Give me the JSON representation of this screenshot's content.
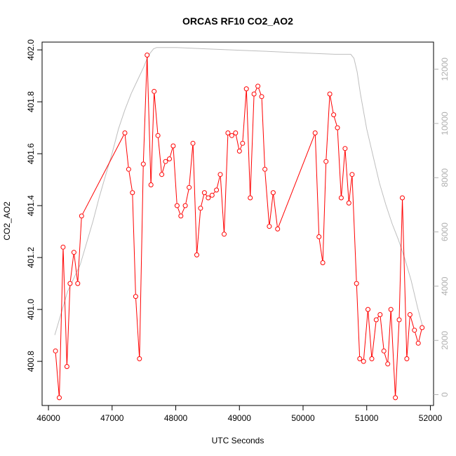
{
  "chart_data": {
    "type": "line",
    "title": "ORCAS RF10 CO2_AO2",
    "xlabel": "UTC Seconds",
    "ylabel": "CO2_AO2",
    "xlim": [
      45900,
      52050
    ],
    "ylim": [
      400.63,
      402.03
    ],
    "x_ticks": [
      46000,
      47000,
      48000,
      49000,
      50000,
      51000,
      52000
    ],
    "y_ticks": [
      400.8,
      401.0,
      401.2,
      401.4,
      401.6,
      401.8,
      402.0
    ],
    "y2lim": [
      -400,
      13000
    ],
    "y2_ticks": [
      0,
      2000,
      4000,
      6000,
      8000,
      10000,
      12000
    ],
    "grid": false,
    "colors": {
      "co2": "#ff0000",
      "altitude": "#bebebe",
      "right_axis": "#b0b0b0"
    },
    "series": [
      {
        "axis": "left",
        "style": "line+points",
        "x": [
          46110,
          46170,
          46230,
          46290,
          46340,
          46400,
          46460,
          46520,
          47200,
          47260,
          47320,
          47370,
          47430,
          47490,
          47550,
          47610,
          47660,
          47720,
          47780,
          47840,
          47900,
          47960,
          48020,
          48080,
          48150,
          48210,
          48270,
          48330,
          48390,
          48450,
          48510,
          48570,
          48640,
          48700,
          48760,
          48820,
          48880,
          48940,
          49000,
          49050,
          49110,
          49170,
          49230,
          49290,
          49350,
          49400,
          49470,
          49530,
          49600,
          50190,
          50250,
          50310,
          50360,
          50420,
          50480,
          50540,
          50600,
          50660,
          50720,
          50770,
          50840,
          50890,
          50950,
          51020,
          51080,
          51150,
          51210,
          51270,
          51330,
          51380,
          51450,
          51510,
          51560,
          51630,
          51680,
          51750,
          51810,
          51870
        ],
        "y": [
          400.84,
          400.66,
          401.24,
          400.78,
          401.1,
          401.22,
          401.1,
          401.36,
          401.68,
          401.54,
          401.45,
          401.05,
          400.81,
          401.56,
          401.98,
          401.48,
          401.84,
          401.67,
          401.52,
          401.57,
          401.58,
          401.63,
          401.4,
          401.36,
          401.4,
          401.47,
          401.64,
          401.21,
          401.39,
          401.45,
          401.43,
          401.44,
          401.46,
          401.52,
          401.29,
          401.68,
          401.67,
          401.68,
          401.61,
          401.64,
          401.85,
          401.43,
          401.83,
          401.86,
          401.82,
          401.54,
          401.32,
          401.45,
          401.31,
          401.68,
          401.28,
          401.18,
          401.57,
          401.83,
          401.75,
          401.7,
          401.43,
          401.62,
          401.41,
          401.52,
          401.1,
          400.81,
          400.8,
          401.0,
          400.81,
          400.96,
          400.98,
          400.84,
          400.79,
          401.0,
          400.66,
          400.96,
          401.43,
          400.81,
          400.98,
          400.92,
          400.87,
          400.93
        ]
      },
      {
        "axis": "right",
        "style": "line",
        "x": [
          46100,
          46200,
          46300,
          46400,
          46500,
          46600,
          46700,
          46800,
          46900,
          47000,
          47100,
          47200,
          47300,
          47400,
          47500,
          47550,
          47600,
          47650,
          47700,
          48000,
          48500,
          49000,
          49500,
          50000,
          50500,
          50700,
          50750,
          50800,
          50850,
          50900,
          51000,
          51100,
          51200,
          51300,
          51400,
          51500,
          51600,
          51700,
          51800,
          51880
        ],
        "y": [
          2200,
          3000,
          3800,
          4300,
          4800,
          5600,
          6400,
          7300,
          8100,
          8900,
          9800,
          10500,
          11100,
          11600,
          12100,
          12400,
          12600,
          12750,
          12800,
          12800,
          12750,
          12700,
          12650,
          12600,
          12550,
          12550,
          12550,
          12400,
          11900,
          11100,
          9800,
          8800,
          7800,
          7000,
          6300,
          5700,
          5000,
          4200,
          3200,
          2500
        ]
      }
    ]
  }
}
